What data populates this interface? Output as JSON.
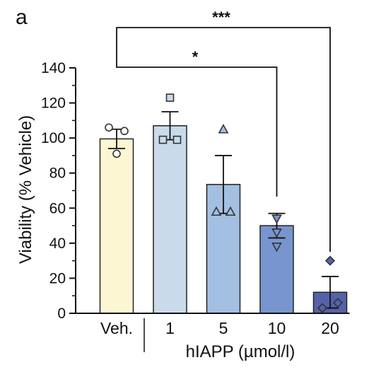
{
  "panel_label": "a",
  "chart_data": {
    "type": "bar",
    "title": "",
    "categories": [
      "Veh.",
      "1",
      "5",
      "10",
      "20"
    ],
    "values": [
      99.5,
      107,
      73.5,
      50,
      12
    ],
    "errors": [
      5.5,
      8,
      16.5,
      7,
      9
    ],
    "bar_colors": [
      "#fcf6d3",
      "#c9dbeb",
      "#a3bfe2",
      "#7895cf",
      "#5463a9"
    ],
    "points": [
      {
        "marker": "circle",
        "y": [
          106,
          104,
          91
        ]
      },
      {
        "marker": "square",
        "y": [
          123,
          99,
          99
        ]
      },
      {
        "marker": "triangle",
        "y": [
          105,
          58,
          58
        ]
      },
      {
        "marker": "triangle-down",
        "y": [
          54,
          46,
          38
        ]
      },
      {
        "marker": "diamond",
        "y": [
          30,
          3,
          6
        ]
      }
    ],
    "xlabel": "hIAPP (µmol/l)",
    "ylabel": "Viability (% Vehicle)",
    "ylim": [
      0,
      140
    ],
    "yticks": [
      0,
      20,
      40,
      60,
      80,
      100,
      120,
      140
    ],
    "grid": false,
    "significance": [
      {
        "from": "Veh.",
        "to": "10",
        "label": "*"
      },
      {
        "from": "Veh.",
        "to": "20",
        "label": "***"
      }
    ]
  }
}
